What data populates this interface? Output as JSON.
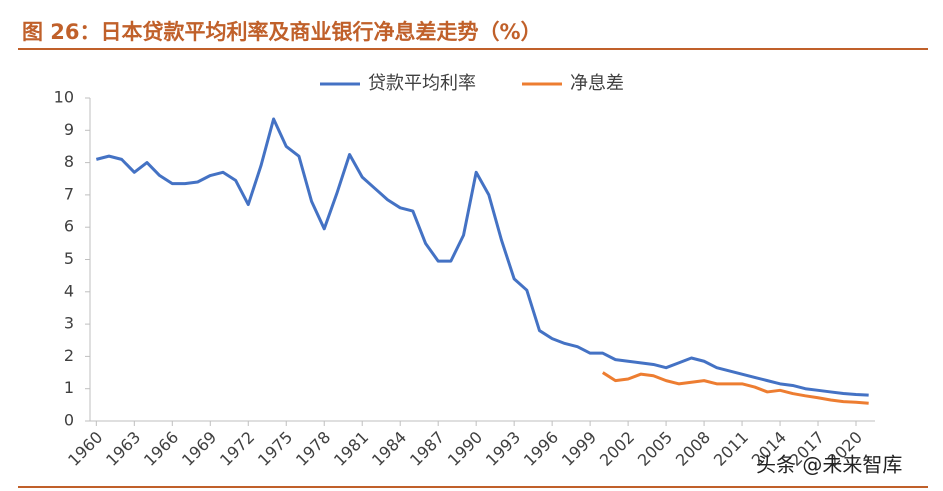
{
  "chart_data": {
    "type": "line",
    "title": "图 26：日本贷款平均利率及商业银行净息差走势（%）",
    "watermark": "头条 @未来智库",
    "x": [
      1960,
      1961,
      1962,
      1963,
      1964,
      1965,
      1966,
      1967,
      1968,
      1969,
      1970,
      1971,
      1972,
      1973,
      1974,
      1975,
      1976,
      1977,
      1978,
      1979,
      1980,
      1981,
      1982,
      1983,
      1984,
      1985,
      1986,
      1987,
      1988,
      1989,
      1990,
      1991,
      1992,
      1993,
      1994,
      1995,
      1996,
      1997,
      1998,
      1999,
      2000,
      2001,
      2002,
      2003,
      2004,
      2005,
      2006,
      2007,
      2008,
      2009,
      2010,
      2011,
      2012,
      2013,
      2014,
      2015,
      2016,
      2017,
      2018,
      2019,
      2020,
      2021
    ],
    "series": [
      {
        "name": "贷款平均利率",
        "color": "#4472c4",
        "values": [
          8.1,
          8.2,
          8.1,
          7.7,
          8.0,
          7.6,
          7.35,
          7.35,
          7.4,
          7.6,
          7.7,
          7.45,
          6.7,
          7.9,
          9.35,
          8.5,
          8.2,
          6.8,
          5.95,
          7.05,
          8.25,
          7.55,
          7.2,
          6.85,
          6.6,
          6.5,
          5.5,
          4.95,
          4.95,
          5.75,
          7.7,
          7.0,
          5.6,
          4.4,
          4.05,
          2.8,
          2.55,
          2.4,
          2.3,
          2.1,
          2.1,
          1.9,
          1.85,
          1.8,
          1.75,
          1.65,
          1.8,
          1.95,
          1.85,
          1.65,
          1.55,
          1.45,
          1.35,
          1.25,
          1.15,
          1.1,
          1.0,
          0.95,
          0.9,
          0.85,
          0.82,
          0.8
        ]
      },
      {
        "name": "净息差",
        "color": "#ed7d31",
        "values": [
          null,
          null,
          null,
          null,
          null,
          null,
          null,
          null,
          null,
          null,
          null,
          null,
          null,
          null,
          null,
          null,
          null,
          null,
          null,
          null,
          null,
          null,
          null,
          null,
          null,
          null,
          null,
          null,
          null,
          null,
          null,
          null,
          null,
          null,
          null,
          null,
          null,
          null,
          null,
          null,
          1.5,
          1.25,
          1.3,
          1.45,
          1.4,
          1.25,
          1.15,
          1.2,
          1.25,
          1.15,
          1.15,
          1.15,
          1.05,
          0.9,
          0.95,
          0.85,
          0.78,
          0.72,
          0.65,
          0.6,
          0.58,
          0.55
        ]
      }
    ],
    "xlim": [
      1959.5,
      2021.5
    ],
    "xticks": [
      1960,
      1963,
      1966,
      1969,
      1972,
      1975,
      1978,
      1981,
      1984,
      1987,
      1990,
      1993,
      1996,
      1999,
      2002,
      2005,
      2008,
      2011,
      2014,
      2017,
      2020
    ],
    "ylim": [
      0,
      10
    ],
    "yticks": [
      0,
      1,
      2,
      3,
      4,
      5,
      6,
      7,
      8,
      9,
      10
    ],
    "grid": false,
    "legend": "top"
  }
}
